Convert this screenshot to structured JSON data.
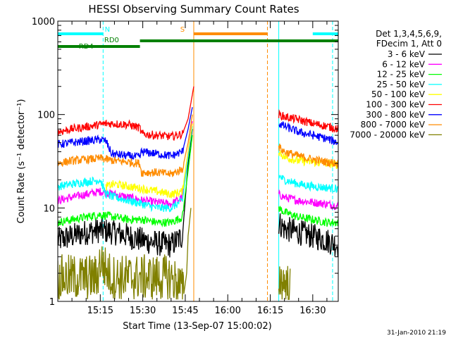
{
  "chart_data": {
    "type": "line",
    "title": "HESSI Observing Summary Count Rates",
    "xlabel": "Start Time (13-Sep-07 15:00:02)",
    "ylabel": "Count Rate (s⁻¹ detector⁻¹)",
    "y_scale": "log",
    "ylim": [
      1,
      1000
    ],
    "xlim_minutes": [
      0,
      99
    ],
    "x_ticks": [
      {
        "t": 15,
        "label": "15:15"
      },
      {
        "t": 30,
        "label": "15:30"
      },
      {
        "t": 45,
        "label": "15:45"
      },
      {
        "t": 60,
        "label": "16:00"
      },
      {
        "t": 75,
        "label": "16:15"
      },
      {
        "t": 90,
        "label": "16:30"
      }
    ],
    "y_ticks": [
      {
        "v": 1,
        "label": "1"
      },
      {
        "v": 10,
        "label": "10"
      },
      {
        "v": 100,
        "label": "100"
      },
      {
        "v": 1000,
        "label": "1000"
      }
    ],
    "grid": false,
    "legend": {
      "placement": "right",
      "header": [
        "Det 1,3,4,5,6,9,",
        "FDecim 1, Att 0"
      ]
    },
    "data_gap_minutes": [
      47.5,
      78
    ],
    "series": [
      {
        "name": "3 - 6 keV",
        "color": "#000000",
        "segments": [
          {
            "t": [
              0,
              5,
              10,
              15,
              20,
              25,
              30,
              35,
              40,
              44,
              46,
              47.5
            ],
            "v": [
              4.5,
              5,
              5.5,
              5.8,
              5.5,
              5,
              4.5,
              4.2,
              4,
              5,
              30,
              70
            ]
          },
          {
            "t": [
              78,
              80,
              85,
              90,
              95,
              99
            ],
            "v": [
              7,
              6,
              5.5,
              5,
              4.5,
              4
            ]
          }
        ]
      },
      {
        "name": "6 - 12 keV",
        "color": "#ff00ff",
        "segments": [
          {
            "t": [
              0,
              5,
              10,
              15,
              20,
              25,
              30,
              35,
              40,
              44,
              46,
              47.5
            ],
            "v": [
              12,
              13,
              14,
              15,
              14,
              13,
              12,
              11.5,
              11,
              13,
              40,
              85
            ]
          },
          {
            "t": [
              78,
              80,
              85,
              90,
              95,
              99
            ],
            "v": [
              14,
              13,
              12,
              11.5,
              11,
              10.5
            ]
          }
        ]
      },
      {
        "name": "12 - 25 keV",
        "color": "#00ff00",
        "segments": [
          {
            "t": [
              0,
              5,
              10,
              15,
              20,
              25,
              30,
              35,
              40,
              44,
              46,
              47.5
            ],
            "v": [
              7,
              7.5,
              8,
              8.5,
              8,
              7.5,
              7.5,
              7,
              7,
              8,
              25,
              60
            ]
          },
          {
            "t": [
              78,
              80,
              85,
              90,
              95,
              99
            ],
            "v": [
              10,
              9,
              8,
              7.5,
              7,
              7
            ]
          }
        ]
      },
      {
        "name": "25 - 50 keV",
        "color": "#00ffff",
        "segments": [
          {
            "t": [
              0,
              5,
              10,
              15,
              17,
              20,
              25,
              30,
              35,
              40,
              44,
              46,
              47.5
            ],
            "v": [
              17,
              18,
              19,
              20,
              14,
              13,
              12,
              11,
              10,
              10,
              12,
              35,
              75
            ]
          },
          {
            "t": [
              78,
              80,
              85,
              90,
              95,
              99
            ],
            "v": [
              22,
              20,
              18,
              17,
              16.5,
              16
            ]
          }
        ]
      },
      {
        "name": "50 - 100 keV",
        "color": "#ffff00",
        "segments": [
          {
            "t": [
              17,
              20,
              25,
              30,
              35,
              40,
              44,
              46,
              47.5
            ],
            "v": [
              17,
              18,
              17,
              16,
              15,
              14,
              15,
              40,
              80
            ]
          },
          {
            "t": [
              78,
              80,
              85,
              90,
              95,
              99
            ],
            "v": [
              40,
              35,
              32,
              31,
              30,
              29
            ]
          }
        ]
      },
      {
        "name": "100 - 300 keV",
        "color": "#ff0000",
        "segments": [
          {
            "t": [
              0,
              5,
              10,
              15,
              17,
              19,
              25,
              29,
              29.5,
              35,
              40,
              44,
              46,
              48
            ],
            "v": [
              65,
              70,
              74,
              78,
              80,
              80,
              78,
              72,
              62,
              60,
              58,
              62,
              90,
              200
            ]
          },
          {
            "t": [
              78,
              80,
              85,
              90,
              95,
              99
            ],
            "v": [
              100,
              95,
              88,
              80,
              75,
              70
            ]
          }
        ]
      },
      {
        "name": "300 - 800 keV",
        "color": "#0000ff",
        "segments": [
          {
            "t": [
              0,
              5,
              10,
              15,
              17,
              19,
              25,
              29,
              29.5,
              35,
              40,
              44,
              46,
              47.5
            ],
            "v": [
              48,
              50,
              52,
              54,
              52,
              38,
              36,
              35,
              40,
              38,
              36,
              40,
              70,
              120
            ]
          },
          {
            "t": [
              78,
              80,
              85,
              90,
              95,
              99
            ],
            "v": [
              80,
              75,
              65,
              60,
              55,
              50
            ]
          }
        ]
      },
      {
        "name": "800 - 7000 keV",
        "color": "#ff8c00",
        "segments": [
          {
            "t": [
              0,
              5,
              10,
              15,
              20,
              25,
              29,
              29.5,
              35,
              40,
              44,
              46,
              47.5
            ],
            "v": [
              30,
              32,
              33,
              34,
              32,
              31,
              30,
              24,
              24,
              23,
              26,
              50,
              100
            ]
          },
          {
            "t": [
              78,
              80,
              85,
              90,
              95,
              99
            ],
            "v": [
              45,
              40,
              36,
              33,
              31,
              30
            ]
          }
        ]
      },
      {
        "name": "7000 - 20000 keV",
        "color": "#808000",
        "segments": [
          {
            "t": [
              0,
              14,
              15,
              17,
              19,
              40,
              43,
              44.5,
              45.5,
              46,
              47
            ],
            "v": [
              1.8,
              1.8,
              2.8,
              2.2,
              1.8,
              1.8,
              1.5,
              1.2,
              2,
              5,
              10
            ]
          },
          {
            "t": [
              78,
              80,
              82
            ],
            "v": [
              1.8,
              1.6,
              1.4
            ]
          }
        ]
      }
    ],
    "state_bars": [
      {
        "label": "N",
        "color": "#00ffff",
        "level": "upper",
        "t": [
          [
            0,
            16
          ],
          [
            90,
            99
          ]
        ],
        "label_t": 17.5
      },
      {
        "label": "S",
        "color": "#ff8c00",
        "level": "upper",
        "t": [
          [
            48,
            74
          ]
        ],
        "label_t": 44
      },
      {
        "label": "RD0",
        "color": "#008000",
        "level": "middle",
        "t": [
          [
            29,
            99
          ]
        ],
        "label_t": 19
      },
      {
        "label": "RD4",
        "color": "#008000",
        "level": "lower",
        "t": [
          [
            0,
            29
          ]
        ],
        "label_t": 10
      }
    ],
    "vertical_markers": [
      {
        "t": 16,
        "color": "#00ffff",
        "style": "dashed"
      },
      {
        "t": 48,
        "color": "#ff8c00",
        "style": "solid"
      },
      {
        "t": 74,
        "color": "#ff8c00",
        "style": "dashed"
      },
      {
        "t": 78,
        "color": "#00ffff",
        "style": "solid"
      },
      {
        "t": 97,
        "color": "#00ffff",
        "style": "dashed"
      }
    ]
  },
  "footer": {
    "timestamp": "31-Jan-2010 21:19"
  }
}
